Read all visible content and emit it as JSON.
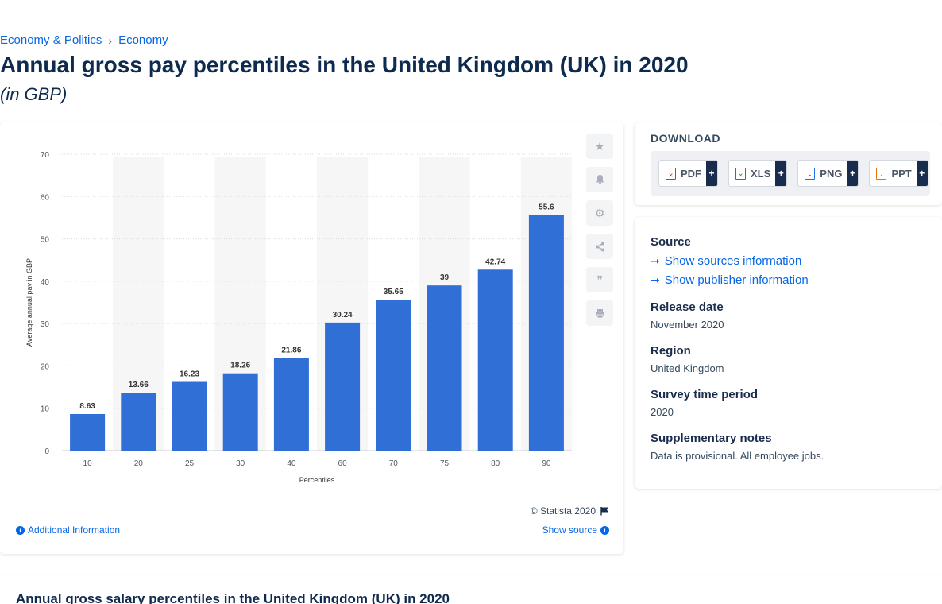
{
  "breadcrumb": [
    "Economy & Politics",
    "Economy"
  ],
  "breadcrumb_sep": "›",
  "page": {
    "title": "Annual gross pay percentiles in the United Kingdom (UK) in 2020",
    "subtitle": "(in GBP)"
  },
  "chart_data": {
    "type": "bar",
    "categories": [
      "10",
      "20",
      "25",
      "30",
      "40",
      "60",
      "70",
      "75",
      "80",
      "90"
    ],
    "values": [
      8.63,
      13.66,
      16.23,
      18.26,
      21.86,
      30.24,
      35.65,
      39,
      42.74,
      55.6
    ],
    "value_labels": [
      "8.63",
      "13.66",
      "16.23",
      "18.26",
      "21.86",
      "30.24",
      "35.65",
      "39",
      "42.74",
      "55.6"
    ],
    "xlabel": "Percentiles",
    "ylabel": "Average annual pay in GBP",
    "ylim": [
      0,
      70
    ],
    "yticks": [
      "0",
      "10",
      "20",
      "30",
      "40",
      "50",
      "60",
      "70"
    ],
    "grid": true,
    "bar_color": "#2f6fd6"
  },
  "chart_footer": {
    "copyright": "© Statista 2020",
    "additional_info": "Additional Information",
    "show_source": "Show source"
  },
  "download": {
    "title": "DOWNLOAD",
    "buttons": [
      {
        "label": "PDF",
        "color": "#d93025"
      },
      {
        "label": "XLS",
        "color": "#1e8e3e"
      },
      {
        "label": "PNG",
        "color": "#1a73e8"
      },
      {
        "label": "PPT",
        "color": "#e8710a"
      }
    ],
    "plus": "+"
  },
  "info": {
    "source_label": "Source",
    "show_sources": "Show sources information",
    "show_publisher": "Show publisher information",
    "release_label": "Release date",
    "release_value": "November 2020",
    "region_label": "Region",
    "region_value": "United Kingdom",
    "period_label": "Survey time period",
    "period_value": "2020",
    "notes_label": "Supplementary notes",
    "notes_value": "Data is provisional. All employee jobs."
  },
  "bottom": {
    "title": "Annual gross salary percentiles in the United Kingdom (UK) in 2020"
  }
}
